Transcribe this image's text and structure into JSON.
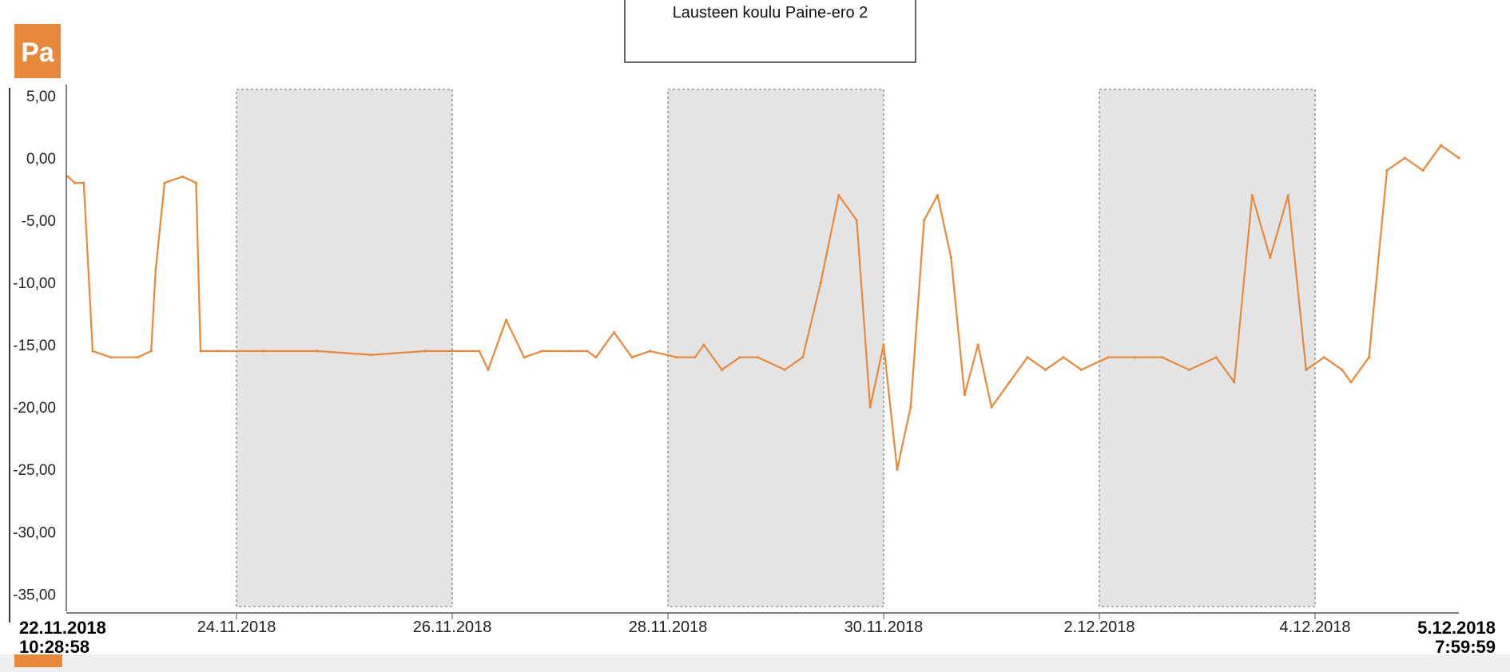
{
  "colors": {
    "series": "#e8883a",
    "weekend_shade": "#e4e4e4",
    "unit_badge": "#e8883a",
    "axis": "#555555"
  },
  "chart_data": {
    "type": "line",
    "title": "Lausteen koulu Paine-ero 2",
    "unit": "Pa",
    "ylim": [
      -36,
      5.5
    ],
    "y_ticks": [
      5,
      0,
      -5,
      -10,
      -15,
      -20,
      -25,
      -30,
      -35
    ],
    "y_tick_labels": [
      "5,00",
      "0,00",
      "-5,00",
      "-10,00",
      "-15,00",
      "-20,00",
      "-25,00",
      "-30,00",
      "-35,00"
    ],
    "x_range": [
      "2018-11-22T10:28:58",
      "2018-12-05T07:59:59"
    ],
    "x_start_label": {
      "date": "22.11.2018",
      "time": "10:28:58"
    },
    "x_end_label": {
      "date": "5.12.2018",
      "time": "7:59:59"
    },
    "x_ticks": [
      {
        "label": "24.11.2018",
        "value": "2018-11-24T00:00:00"
      },
      {
        "label": "26.11.2018",
        "value": "2018-11-26T00:00:00"
      },
      {
        "label": "28.11.2018",
        "value": "2018-11-28T00:00:00"
      },
      {
        "label": "30.11.2018",
        "value": "2018-11-30T00:00:00"
      },
      {
        "label": "2.12.2018",
        "value": "2018-12-02T00:00:00"
      },
      {
        "label": "4.12.2018",
        "value": "2018-12-04T00:00:00"
      }
    ],
    "weekend_shading": [
      [
        "2018-11-24T00:00:00",
        "2018-11-26T00:00:00"
      ],
      [
        "2018-11-28T00:00:00",
        "2018-11-30T00:00:00"
      ],
      [
        "2018-12-02T00:00:00",
        "2018-12-04T00:00:00"
      ]
    ],
    "grid": false,
    "series": [
      {
        "x": [
          "2018-11-22T10:28:58",
          "2018-11-22T12:00:00",
          "2018-11-22T14:00:00",
          "2018-11-22T16:00:00",
          "2018-11-22T20:00:00",
          "2018-11-23T02:00:00",
          "2018-11-23T05:00:00",
          "2018-11-23T06:00:00",
          "2018-11-23T08:00:00",
          "2018-11-23T12:00:00",
          "2018-11-23T15:00:00",
          "2018-11-23T16:00:00",
          "2018-11-23T20:00:00",
          "2018-11-24T06:00:00",
          "2018-11-24T18:00:00",
          "2018-11-25T06:00:00",
          "2018-11-25T18:00:00",
          "2018-11-26T06:00:00",
          "2018-11-26T08:00:00",
          "2018-11-26T12:00:00",
          "2018-11-26T16:00:00",
          "2018-11-26T20:00:00",
          "2018-11-27T02:00:00",
          "2018-11-27T06:00:00",
          "2018-11-27T08:00:00",
          "2018-11-27T12:00:00",
          "2018-11-27T16:00:00",
          "2018-11-27T20:00:00",
          "2018-11-28T02:00:00",
          "2018-11-28T06:00:00",
          "2018-11-28T08:00:00",
          "2018-11-28T12:00:00",
          "2018-11-28T16:00:00",
          "2018-11-28T20:00:00",
          "2018-11-29T02:00:00",
          "2018-11-29T06:00:00",
          "2018-11-29T10:00:00",
          "2018-11-29T14:00:00",
          "2018-11-29T18:00:00",
          "2018-11-29T21:00:00",
          "2018-11-30T00:00:00",
          "2018-11-30T03:00:00",
          "2018-11-30T06:00:00",
          "2018-11-30T09:00:00",
          "2018-11-30T12:00:00",
          "2018-11-30T15:00:00",
          "2018-11-30T18:00:00",
          "2018-11-30T21:00:00",
          "2018-12-01T00:00:00",
          "2018-12-01T04:00:00",
          "2018-12-01T08:00:00",
          "2018-12-01T12:00:00",
          "2018-12-01T16:00:00",
          "2018-12-01T20:00:00",
          "2018-12-02T02:00:00",
          "2018-12-02T08:00:00",
          "2018-12-02T14:00:00",
          "2018-12-02T20:00:00",
          "2018-12-03T02:00:00",
          "2018-12-03T06:00:00",
          "2018-12-03T10:00:00",
          "2018-12-03T14:00:00",
          "2018-12-03T18:00:00",
          "2018-12-03T22:00:00",
          "2018-12-04T02:00:00",
          "2018-12-04T06:00:00",
          "2018-12-04T08:00:00",
          "2018-12-04T12:00:00",
          "2018-12-04T16:00:00",
          "2018-12-04T20:00:00",
          "2018-12-05T00:00:00",
          "2018-12-05T04:00:00",
          "2018-12-05T07:59:59"
        ],
        "values": [
          -1.5,
          -2,
          -2,
          -15.5,
          -16,
          -16,
          -15.5,
          -9,
          -2,
          -1.5,
          -2,
          -15.5,
          -15.5,
          -15.5,
          -15.5,
          -15.8,
          -15.5,
          -15.5,
          -17,
          -13,
          -16,
          -15.5,
          -15.5,
          -15.5,
          -16,
          -14,
          -16,
          -15.5,
          -16,
          -16,
          -15,
          -17,
          -16,
          -16,
          -17,
          -16,
          -10,
          -3,
          -5,
          -20,
          -15,
          -25,
          -20,
          -5,
          -3,
          -8,
          -19,
          -15,
          -20,
          -18,
          -16,
          -17,
          -16,
          -17,
          -16,
          -16,
          -16,
          -17,
          -16,
          -18,
          -3,
          -8,
          -3,
          -17,
          -16,
          -17,
          -18,
          -16,
          -1,
          0,
          -1,
          1,
          0
        ]
      }
    ]
  }
}
